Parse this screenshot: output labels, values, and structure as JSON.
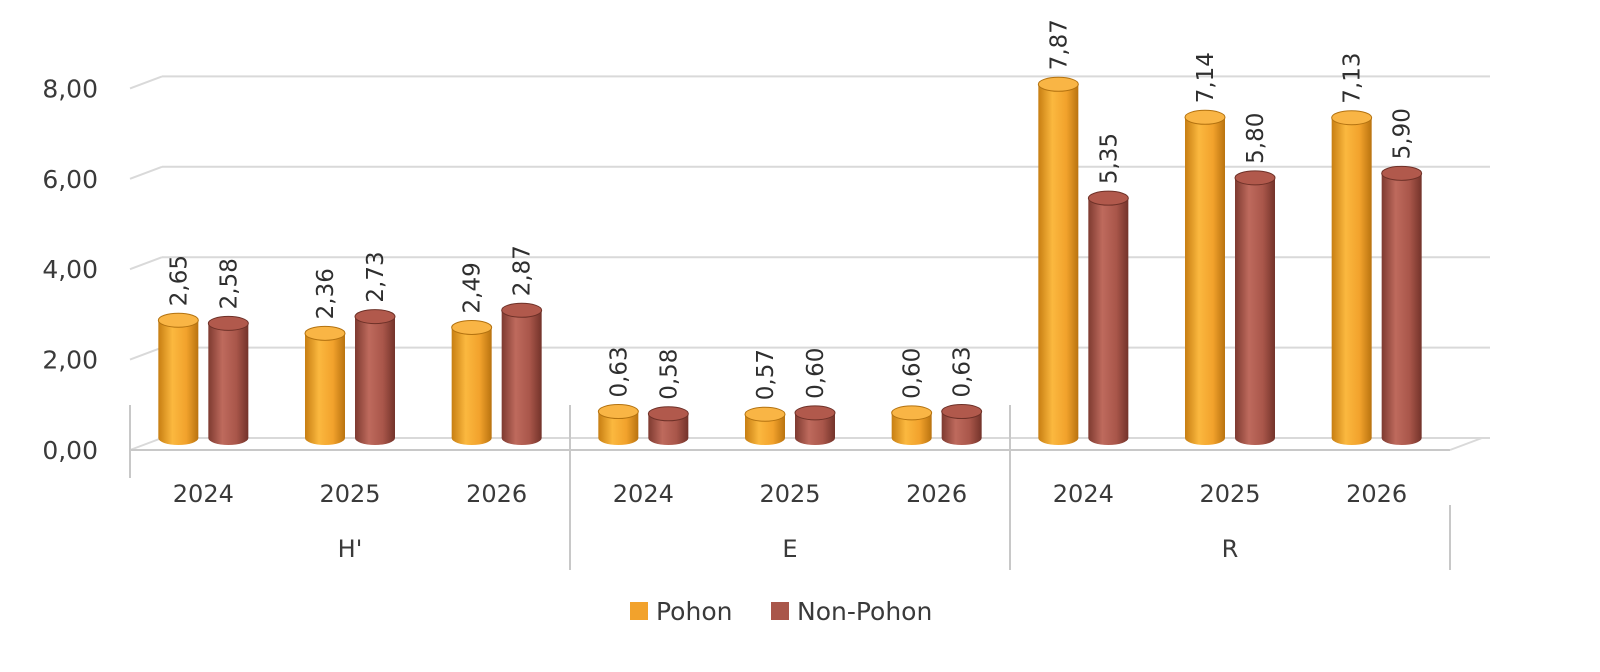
{
  "chart_data": {
    "type": "bar",
    "subtype": "3d-cylinder-clustered",
    "ylim": [
      0,
      8
    ],
    "yticks": [
      "0,00",
      "2,00",
      "4,00",
      "6,00",
      "8,00"
    ],
    "ytick_values": [
      0,
      2,
      4,
      6,
      8
    ],
    "grid": true,
    "legend_position": "bottom",
    "groups": [
      {
        "label": "H'",
        "categories": [
          "2024",
          "2025",
          "2026"
        ]
      },
      {
        "label": "E",
        "categories": [
          "2024",
          "2025",
          "2026"
        ]
      },
      {
        "label": "R",
        "categories": [
          "2024",
          "2025",
          "2026"
        ]
      }
    ],
    "series": [
      {
        "name": "Pohon",
        "color": "#F2A22C",
        "values": [
          2.65,
          2.36,
          2.49,
          0.63,
          0.57,
          0.6,
          7.87,
          7.14,
          7.13
        ],
        "labels": [
          "2,65",
          "2,36",
          "2,49",
          "0,63",
          "0,57",
          "0,60",
          "7,87",
          "7,14",
          "7,13"
        ]
      },
      {
        "name": "Non-Pohon",
        "color": "#A9564A",
        "values": [
          2.58,
          2.73,
          2.87,
          0.58,
          0.6,
          0.63,
          5.35,
          5.8,
          5.9
        ],
        "labels": [
          "2,58",
          "2,73",
          "2,87",
          "0,58",
          "0,60",
          "0,63",
          "5,35",
          "5,80",
          "5,90"
        ]
      }
    ]
  }
}
